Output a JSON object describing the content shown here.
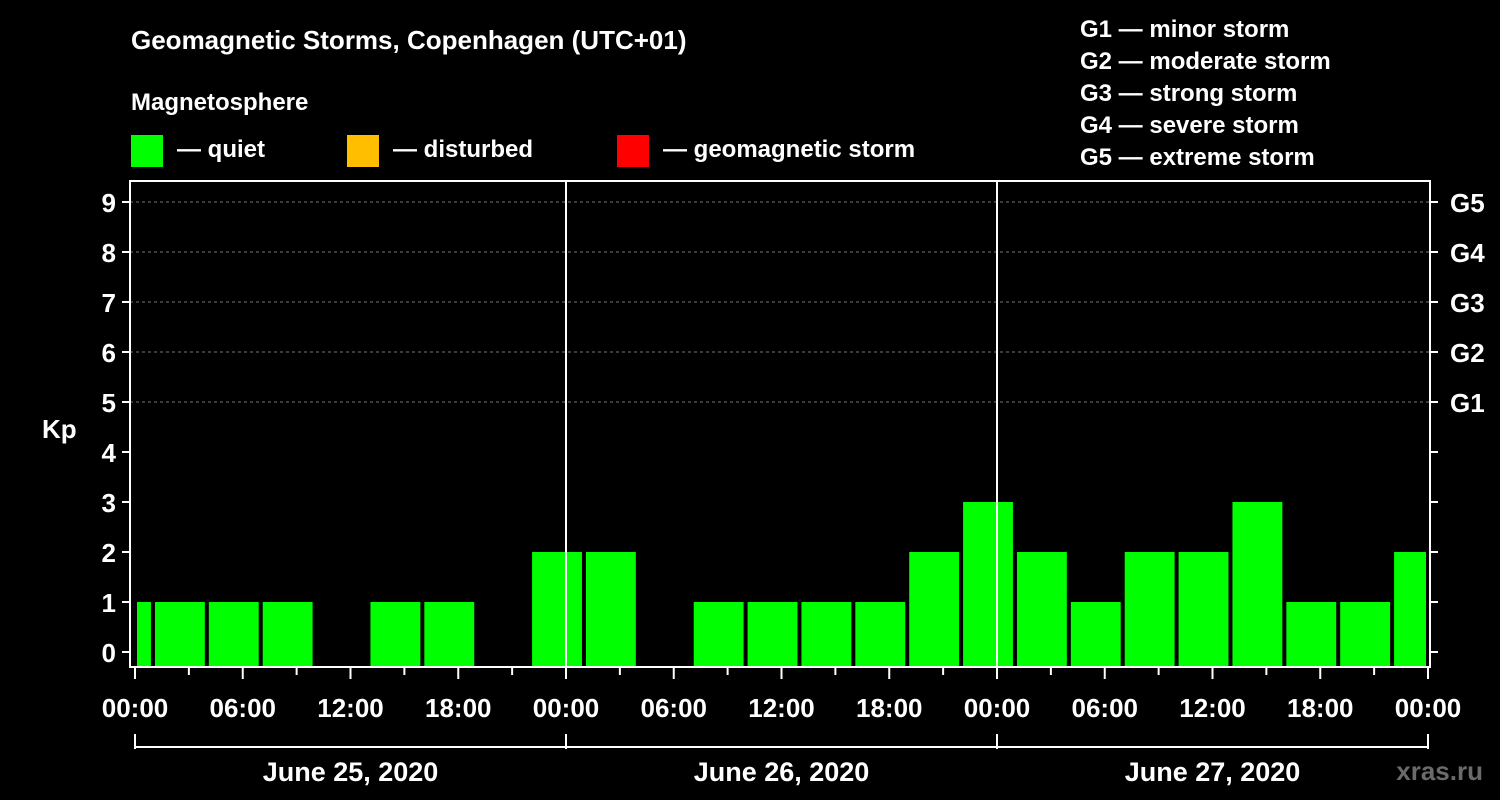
{
  "chart_data": {
    "type": "bar",
    "title": "Geomagnetic Storms, Copenhagen (UTC+01)",
    "subtitle": "Magnetosphere",
    "ylabel": "Kp",
    "watermark": "xras.ru",
    "ylim": [
      0,
      9
    ],
    "yticks": [
      "0",
      "1",
      "2",
      "3",
      "4",
      "5",
      "6",
      "7",
      "8",
      "9"
    ],
    "right_ticks": [
      {
        "kp": 5,
        "label": "G1"
      },
      {
        "kp": 6,
        "label": "G2"
      },
      {
        "kp": 7,
        "label": "G3"
      },
      {
        "kp": 8,
        "label": "G4"
      },
      {
        "kp": 9,
        "label": "G5"
      }
    ],
    "xlim_hours": [
      0,
      72
    ],
    "xticks": [
      {
        "hour": 0,
        "label": "00:00"
      },
      {
        "hour": 6,
        "label": "06:00"
      },
      {
        "hour": 12,
        "label": "12:00"
      },
      {
        "hour": 18,
        "label": "18:00"
      },
      {
        "hour": 24,
        "label": "00:00"
      },
      {
        "hour": 30,
        "label": "06:00"
      },
      {
        "hour": 36,
        "label": "12:00"
      },
      {
        "hour": 42,
        "label": "18:00"
      },
      {
        "hour": 48,
        "label": "00:00"
      },
      {
        "hour": 54,
        "label": "06:00"
      },
      {
        "hour": 60,
        "label": "12:00"
      },
      {
        "hour": 66,
        "label": "18:00"
      },
      {
        "hour": 72,
        "label": "00:00"
      }
    ],
    "days": [
      {
        "label": "June 25, 2020",
        "start_hour": 0,
        "end_hour": 24
      },
      {
        "label": "June 26, 2020",
        "start_hour": 24,
        "end_hour": 48
      },
      {
        "label": "June 27, 2020",
        "start_hour": 48,
        "end_hour": 72
      }
    ],
    "day_dividers_hours": [
      24,
      48
    ],
    "legend": {
      "items": [
        {
          "label": "— quiet",
          "color": "#00ff00"
        },
        {
          "label": "— disturbed",
          "color": "#ffbf00"
        },
        {
          "label": "— geomagnetic storm",
          "color": "#ff0000"
        }
      ]
    },
    "storm_scale": [
      "G1 — minor storm",
      "G2 — moderate storm",
      "G3 — strong storm",
      "G4 — severe storm",
      "G5 — extreme storm"
    ],
    "bars": [
      {
        "start_hour": 0,
        "end_hour": 1,
        "kp": 1,
        "status": "quiet"
      },
      {
        "start_hour": 1,
        "end_hour": 4,
        "kp": 1,
        "status": "quiet"
      },
      {
        "start_hour": 4,
        "end_hour": 7,
        "kp": 1,
        "status": "quiet"
      },
      {
        "start_hour": 7,
        "end_hour": 10,
        "kp": 1,
        "status": "quiet"
      },
      {
        "start_hour": 10,
        "end_hour": 13,
        "kp": 0,
        "status": "quiet"
      },
      {
        "start_hour": 13,
        "end_hour": 16,
        "kp": 1,
        "status": "quiet"
      },
      {
        "start_hour": 16,
        "end_hour": 19,
        "kp": 1,
        "status": "quiet"
      },
      {
        "start_hour": 19,
        "end_hour": 22,
        "kp": 0,
        "status": "quiet"
      },
      {
        "start_hour": 22,
        "end_hour": 25,
        "kp": 2,
        "status": "quiet"
      },
      {
        "start_hour": 25,
        "end_hour": 28,
        "kp": 2,
        "status": "quiet"
      },
      {
        "start_hour": 28,
        "end_hour": 31,
        "kp": 0,
        "status": "quiet"
      },
      {
        "start_hour": 31,
        "end_hour": 34,
        "kp": 1,
        "status": "quiet"
      },
      {
        "start_hour": 34,
        "end_hour": 37,
        "kp": 1,
        "status": "quiet"
      },
      {
        "start_hour": 37,
        "end_hour": 40,
        "kp": 1,
        "status": "quiet"
      },
      {
        "start_hour": 40,
        "end_hour": 43,
        "kp": 1,
        "status": "quiet"
      },
      {
        "start_hour": 43,
        "end_hour": 46,
        "kp": 2,
        "status": "quiet"
      },
      {
        "start_hour": 46,
        "end_hour": 49,
        "kp": 3,
        "status": "quiet"
      },
      {
        "start_hour": 49,
        "end_hour": 52,
        "kp": 2,
        "status": "quiet"
      },
      {
        "start_hour": 52,
        "end_hour": 55,
        "kp": 1,
        "status": "quiet"
      },
      {
        "start_hour": 55,
        "end_hour": 58,
        "kp": 2,
        "status": "quiet"
      },
      {
        "start_hour": 58,
        "end_hour": 61,
        "kp": 2,
        "status": "quiet"
      },
      {
        "start_hour": 61,
        "end_hour": 64,
        "kp": 3,
        "status": "quiet"
      },
      {
        "start_hour": 64,
        "end_hour": 67,
        "kp": 1,
        "status": "quiet"
      },
      {
        "start_hour": 67,
        "end_hour": 70,
        "kp": 1,
        "status": "quiet"
      },
      {
        "start_hour": 70,
        "end_hour": 72,
        "kp": 2,
        "status": "quiet"
      }
    ],
    "grid": "dashed horizontal at Kp 5-9"
  }
}
